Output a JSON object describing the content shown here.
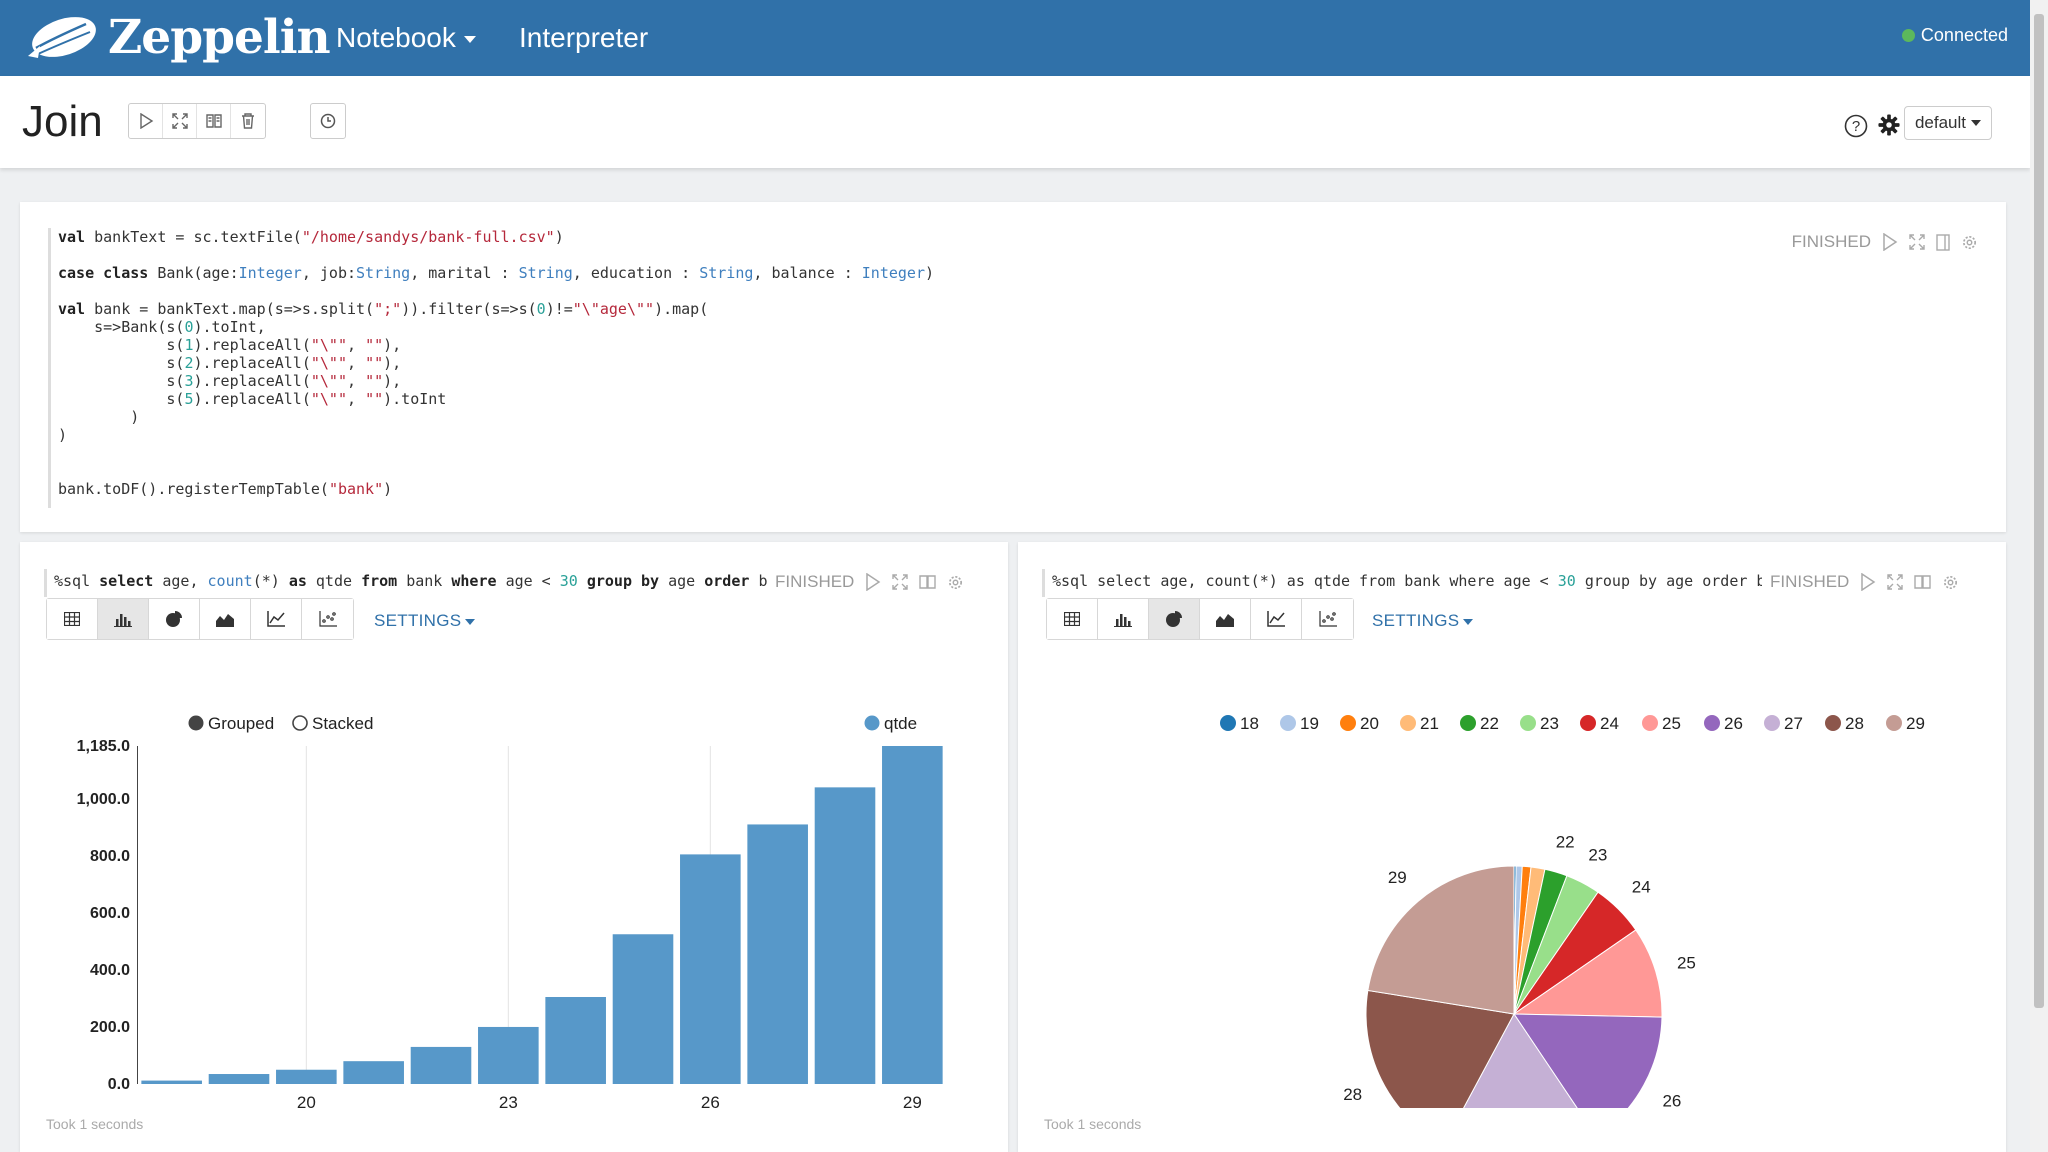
{
  "navbar": {
    "brand": "Zeppelin",
    "notebook_label": "Notebook",
    "interpreter_label": "Interpreter",
    "status": "Connected"
  },
  "note": {
    "title": "Join",
    "interpreter_binding": "default"
  },
  "paragraph1": {
    "status": "FINISHED",
    "code_lines": [
      [
        [
          "val ",
          "kw"
        ],
        [
          "bankText = sc.textFile(",
          ""
        ],
        [
          "\"/home/sandys/bank-full.csv\"",
          "st"
        ],
        [
          ")",
          ""
        ]
      ],
      [],
      [
        [
          "case class ",
          "kw"
        ],
        [
          "Bank(age:",
          ""
        ],
        [
          "Integer",
          "ty"
        ],
        [
          ", job:",
          ""
        ],
        [
          "String",
          "ty"
        ],
        [
          ", marital : ",
          ""
        ],
        [
          "String",
          "ty"
        ],
        [
          ", education : ",
          ""
        ],
        [
          "String",
          "ty"
        ],
        [
          ", balance : ",
          ""
        ],
        [
          "Integer",
          "ty"
        ],
        [
          ")",
          ""
        ]
      ],
      [],
      [
        [
          "val ",
          "kw"
        ],
        [
          "bank = bankText.map(s=>s.split(",
          ""
        ],
        [
          "\";\"",
          "st"
        ],
        [
          ")).filter(s=>s(",
          ""
        ],
        [
          "0",
          "nm"
        ],
        [
          ")!=",
          ""
        ],
        [
          "\"\\\"age\\\"\"",
          "st"
        ],
        [
          ").map(",
          ""
        ]
      ],
      [
        [
          "    s=>Bank(s(",
          ""
        ],
        [
          "0",
          "nm"
        ],
        [
          ").toInt,",
          ""
        ]
      ],
      [
        [
          "            s(",
          ""
        ],
        [
          "1",
          "nm"
        ],
        [
          ").replaceAll(",
          ""
        ],
        [
          "\"\\\"\"",
          "st"
        ],
        [
          ", ",
          ""
        ],
        [
          "\"\"",
          "st"
        ],
        [
          "),",
          ""
        ]
      ],
      [
        [
          "            s(",
          ""
        ],
        [
          "2",
          "nm"
        ],
        [
          ").replaceAll(",
          ""
        ],
        [
          "\"\\\"\"",
          "st"
        ],
        [
          ", ",
          ""
        ],
        [
          "\"\"",
          "st"
        ],
        [
          "),",
          ""
        ]
      ],
      [
        [
          "            s(",
          ""
        ],
        [
          "3",
          "nm"
        ],
        [
          ").replaceAll(",
          ""
        ],
        [
          "\"\\\"\"",
          "st"
        ],
        [
          ", ",
          ""
        ],
        [
          "\"\"",
          "st"
        ],
        [
          "),",
          ""
        ]
      ],
      [
        [
          "            s(",
          ""
        ],
        [
          "5",
          "nm"
        ],
        [
          ").replaceAll(",
          ""
        ],
        [
          "\"\\\"\"",
          "st"
        ],
        [
          ", ",
          ""
        ],
        [
          "\"\"",
          "st"
        ],
        [
          ").toInt",
          ""
        ]
      ],
      [
        [
          "        )",
          ""
        ]
      ],
      [
        [
          ")",
          ""
        ]
      ],
      [],
      [],
      [
        [
          "bank.toDF().registerTempTable(",
          ""
        ],
        [
          "\"bank\"",
          "st"
        ],
        [
          ")",
          ""
        ]
      ]
    ]
  },
  "paragraph2": {
    "code_lines": [
      [
        [
          "%sql ",
          ""
        ],
        [
          "select ",
          "kw"
        ],
        [
          "age, ",
          ""
        ],
        [
          "count",
          "ty"
        ],
        [
          "(*) ",
          ""
        ],
        [
          "as ",
          "kw"
        ],
        [
          "qtde ",
          ""
        ],
        [
          "from ",
          "kw"
        ],
        [
          "bank ",
          ""
        ],
        [
          "where ",
          "kw"
        ],
        [
          "age < ",
          ""
        ],
        [
          "30",
          "nm"
        ],
        [
          " ",
          ""
        ],
        [
          "group by ",
          "kw"
        ],
        [
          "age ",
          ""
        ],
        [
          "order ",
          "kw"
        ],
        [
          "b",
          ""
        ]
      ]
    ],
    "status": "FINISHED",
    "settings_label": "SETTINGS",
    "took": "Took 1 seconds"
  },
  "paragraph3": {
    "code_lines": [
      [
        [
          "%sql select age, count(*) as qtde from bank where age < ",
          ""
        ],
        [
          "30",
          "nm"
        ],
        [
          " group by age order b",
          ""
        ]
      ]
    ],
    "status": "FINISHED",
    "settings_label": "SETTINGS",
    "took": "Took 1 seconds"
  },
  "colors": {
    "bar": "#5798c9",
    "accent": "#3071a9",
    "connected": "#5cb85c"
  },
  "chart_data": [
    {
      "type": "bar",
      "mode_options": [
        "Grouped",
        "Stacked"
      ],
      "mode_selected": "Grouped",
      "x": [
        18,
        19,
        20,
        21,
        22,
        23,
        24,
        25,
        26,
        27,
        28,
        29
      ],
      "series": [
        {
          "name": "qtde",
          "values": [
            12,
            35,
            50,
            80,
            130,
            200,
            305,
            525,
            805,
            910,
            1040,
            1185
          ]
        }
      ],
      "xticks": [
        20,
        23,
        26,
        29
      ],
      "yticks": [
        "0.0",
        "200.0",
        "400.0",
        "600.0",
        "800.0",
        "1,000.0",
        "1,185.0"
      ],
      "ylim": [
        0,
        1185
      ],
      "grid": true,
      "legend": "top-right"
    },
    {
      "type": "pie",
      "labels": [
        "18",
        "19",
        "20",
        "21",
        "22",
        "23",
        "24",
        "25",
        "26",
        "27",
        "28",
        "29"
      ],
      "values": [
        12,
        35,
        50,
        80,
        130,
        200,
        305,
        525,
        805,
        910,
        1040,
        1185
      ],
      "colors": [
        "#1f77b4",
        "#aec7e8",
        "#ff7f0e",
        "#ffbb78",
        "#2ca02c",
        "#98df8a",
        "#d62728",
        "#ff9896",
        "#9467bd",
        "#c5b0d5",
        "#8c564b",
        "#c49c94"
      ],
      "legend": "top"
    }
  ]
}
